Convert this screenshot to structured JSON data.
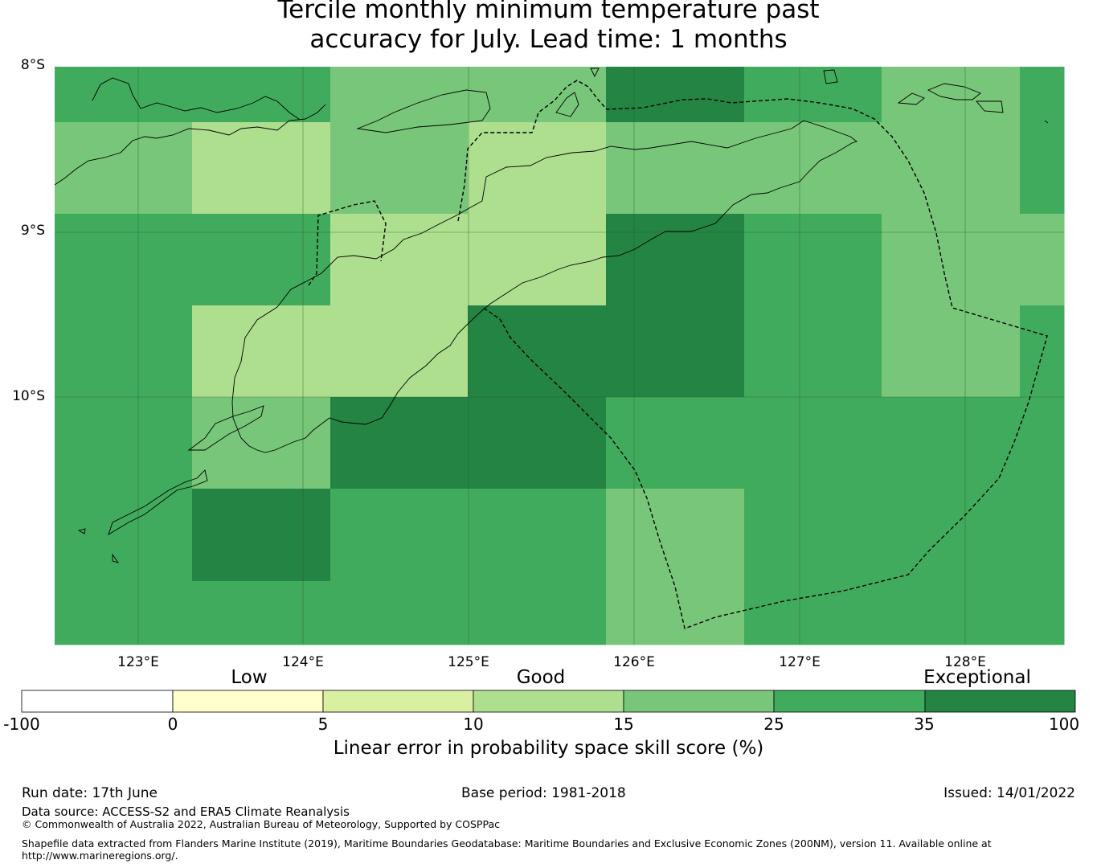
{
  "title": {
    "line1": "Tercile monthly minimum temperature past",
    "line2": "accuracy for July. Lead time: 1 months"
  },
  "map": {
    "lat_labels": [
      "8°S",
      "9°S",
      "10°S"
    ],
    "lon_labels": [
      "123°E",
      "124°E",
      "125°E",
      "126°E",
      "127°E",
      "128°E"
    ],
    "skill_colors": {
      "10-15": "#addf8e",
      "15-25": "#78c679",
      "25-35": "#41ab5d",
      "35-100": "#238443"
    },
    "grid_classes": [
      [
        "25-35",
        "25-35",
        "15-25",
        "15-25",
        "35-100",
        "25-35",
        "15-25",
        "25-35"
      ],
      [
        "15-25",
        "10-15",
        "15-25",
        "10-15",
        "15-25",
        "15-25",
        "15-25",
        "25-35"
      ],
      [
        "25-35",
        "25-35",
        "10-15",
        "10-15",
        "35-100",
        "25-35",
        "15-25",
        "15-25"
      ],
      [
        "25-35",
        "10-15",
        "10-15",
        "35-100",
        "35-100",
        "25-35",
        "15-25",
        "25-35"
      ],
      [
        "25-35",
        "15-25",
        "35-100",
        "35-100",
        "25-35",
        "25-35",
        "25-35",
        "25-35"
      ],
      [
        "25-35",
        "35-100",
        "25-35",
        "25-35",
        "15-25",
        "25-35",
        "25-35",
        "25-35"
      ],
      [
        "25-35",
        "25-35",
        "25-35",
        "25-35",
        "15-25",
        "25-35",
        "25-35",
        "25-35"
      ]
    ],
    "border_style": "dashed EEZ boundary",
    "coastline_color": "#000000"
  },
  "colorbar": {
    "categories": [
      "Low",
      "Good",
      "Exceptional"
    ],
    "ticks": [
      "-100",
      "0",
      "5",
      "10",
      "15",
      "25",
      "35",
      "100"
    ],
    "colors": [
      "#ffffff",
      "#ffffcc",
      "#d9f0a3",
      "#addf8e",
      "#78c679",
      "#41ab5d",
      "#238443"
    ],
    "label": "Linear error in probability space skill score (%)"
  },
  "footer": {
    "run_date": "Run date: 17th June",
    "base_period": "Base period: 1981-2018",
    "issued": "Issued: 14/01/2022",
    "data_source": "Data source: ACCESS-S2 and ERA5 Climate Reanalysis",
    "copyright": "© Commonwealth of Australia 2022, Australian Bureau of Meteorology, Supported by COSPPac",
    "shapefile_line1": "Shapefile data extracted from Flanders Marine Institute (2019), Maritime Boundaries Geodatabase: Maritime Boundaries and Exclusive Economic Zones (200NM), version 11. Available online at",
    "shapefile_line2": "http://www.marineregions.org/."
  }
}
